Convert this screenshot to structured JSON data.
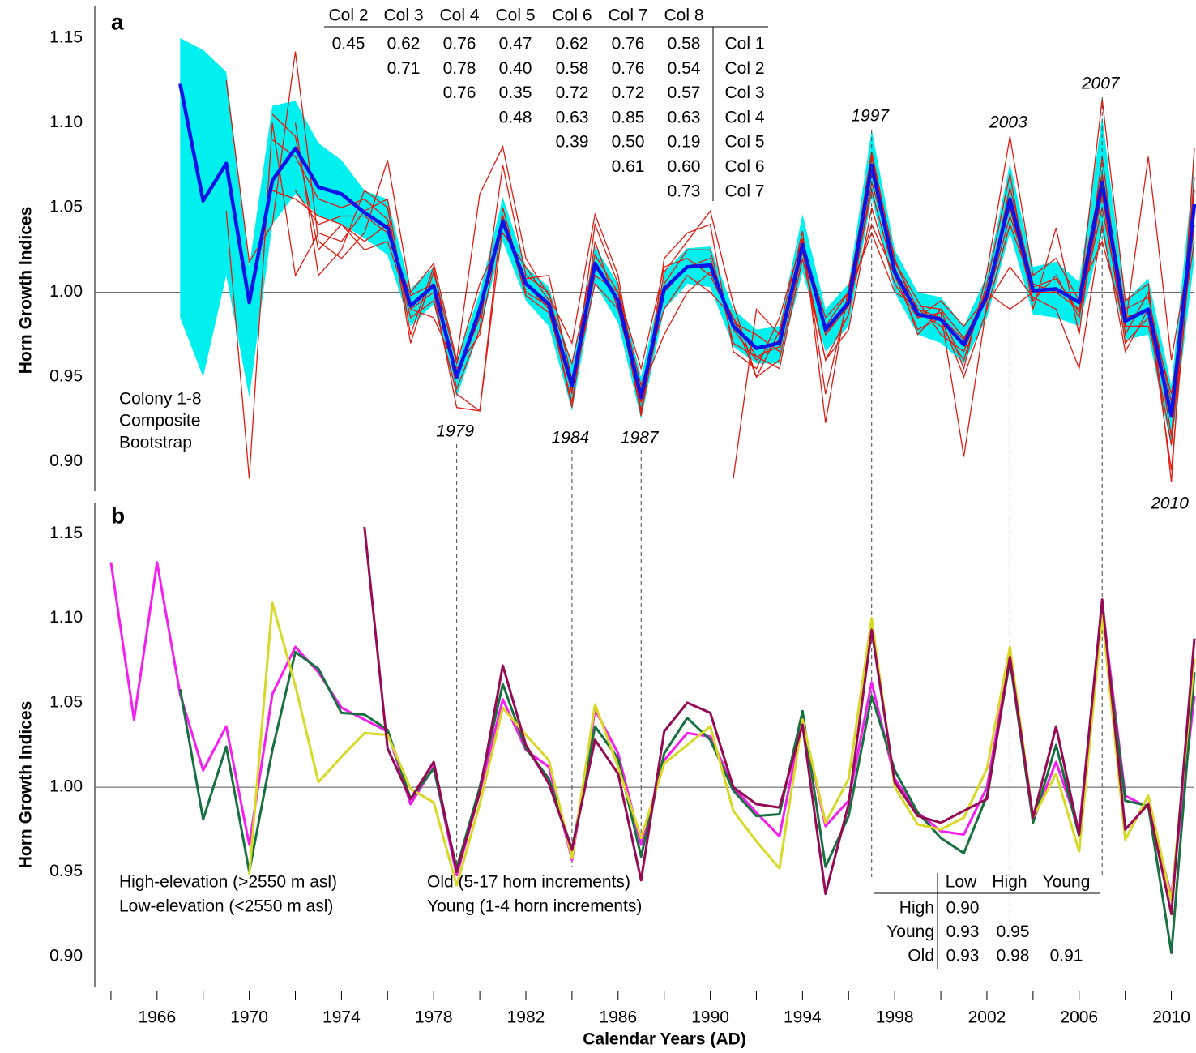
{
  "chart_data": [
    {
      "type": "line",
      "panel": "a",
      "ylabel": "Horn Growth Indices",
      "xlim": [
        1963.3,
        2011
      ],
      "ylim": [
        0.885,
        1.165
      ],
      "yticks": [
        {
          "value": 0.9,
          "label": "0.90"
        },
        0.95,
        {
          "value": 1,
          "label": "1.00"
        },
        1.05,
        {
          "value": 1.1,
          "label": "1.10"
        },
        1.15
      ],
      "hline": 1,
      "grid": false,
      "x": [
        1967,
        1968,
        1969,
        1970,
        1971,
        1972,
        1973,
        1974,
        1975,
        1976,
        1977,
        1978,
        1979,
        1980,
        1981,
        1982,
        1983,
        1984,
        1985,
        1986,
        1987,
        1988,
        1989,
        1990,
        1991,
        1992,
        1993,
        1994,
        1995,
        1996,
        1997,
        1998,
        1999,
        2000,
        2001,
        2002,
        2003,
        2004,
        2005,
        2006,
        2007,
        2008,
        2009,
        2010,
        2011
      ],
      "band": {
        "name": "Bootstrap",
        "color": "#00f0f0",
        "upper": [
          1.15,
          1.143,
          1.13,
          1.015,
          1.11,
          1.113,
          1.088,
          1.078,
          1.06,
          1.055,
          1.002,
          1.015,
          0.96,
          1.0,
          1.056,
          1.015,
          1.003,
          0.957,
          1.027,
          1.005,
          0.95,
          1.012,
          1.026,
          1.027,
          0.99,
          0.978,
          0.98,
          1.046,
          0.99,
          1.005,
          1.096,
          1.025,
          1.0,
          0.997,
          0.98,
          1.01,
          1.076,
          1.015,
          1.018,
          1.006,
          1.104,
          0.995,
          1.008,
          0.945,
          1.078
        ],
        "lower": [
          0.985,
          0.95,
          1.01,
          0.938,
          1.04,
          1.058,
          1.045,
          1.04,
          1.032,
          1.022,
          0.98,
          0.993,
          0.938,
          0.978,
          1.03,
          0.995,
          0.98,
          0.93,
          1.005,
          0.982,
          0.925,
          0.99,
          1.005,
          1.003,
          0.968,
          0.958,
          0.958,
          1.012,
          0.965,
          0.98,
          1.056,
          1.0,
          0.975,
          0.97,
          0.958,
          0.985,
          1.035,
          0.987,
          0.985,
          0.98,
          1.035,
          0.972,
          0.975,
          0.908,
          1.02
        ]
      },
      "colonies": {
        "name": "Colony 1-8",
        "color": "#e41a10",
        "series": [
          [
            null,
            null,
            1.125,
            1.018,
            1.04,
            1.142,
            1.03,
            1.02,
            1.035,
            1.078,
            1.0,
            1.017,
            0.96,
            1.058,
            1.086,
            1.02,
            0.998,
            0.97,
            1.046,
            1.01,
            0.93,
            1.012,
            1.03,
            1.048,
            0.993,
            0.95,
            0.977,
            1.036,
            0.923,
            1.003,
            1.07,
            1.015,
            0.975,
            0.99,
            0.955,
            1.012,
            1.092,
            1.01,
            1.02,
            0.995,
            1.114,
            0.995,
            1.005,
            0.888,
            1.085
          ],
          [
            null,
            null,
            1.048,
            0.89,
            1.1,
            1.01,
            1.035,
            1.03,
            1.048,
            1.055,
            0.975,
            1.015,
            0.943,
            0.978,
            1.075,
            1.01,
            1.0,
            0.94,
            1.04,
            1.005,
            0.927,
            1.02,
            1.035,
            1.04,
            0.965,
            0.955,
            0.985,
            1.032,
            0.94,
            0.998,
            1.083,
            1.018,
            0.99,
            0.98,
            0.96,
            1.005,
            1.07,
            0.99,
            1.038,
            0.975,
            1.08,
            0.975,
            1.0,
            0.915,
            1.068
          ],
          [
            null,
            null,
            null,
            null,
            1.105,
            1.092,
            1.025,
            1.04,
            1.03,
            1.04,
            0.985,
            0.995,
            0.94,
            0.93,
            1.05,
            1.0,
            0.992,
            0.932,
            1.03,
            0.99,
            0.935,
            1.005,
            1.025,
            1.025,
            0.97,
            0.962,
            0.968,
            1.026,
            0.975,
            0.992,
            1.06,
            1.01,
            0.978,
            0.985,
            0.95,
            0.99,
            1.04,
            1.003,
            1.008,
            0.988,
            1.05,
            0.98,
            0.98,
            0.93,
            1.04
          ],
          [
            null,
            null,
            null,
            null,
            1.09,
            1.08,
            1.055,
            1.05,
            1.055,
            1.043,
            0.99,
            1.0,
            0.932,
            0.93,
            1.04,
            1.008,
            1.01,
            0.948,
            1.01,
            1.0,
            0.945,
            0.99,
            1.01,
            1.0,
            0.985,
            0.962,
            0.955,
            1.02,
            0.96,
            0.987,
            1.065,
            1.018,
            0.995,
            0.975,
            0.965,
            1.002,
            1.05,
            0.995,
            1.01,
            0.985,
            1.058,
            0.97,
            0.985,
            0.91,
            1.05
          ],
          [
            null,
            null,
            null,
            null,
            1.06,
            1.055,
            1.045,
            1.04,
            1.025,
            1.03,
            0.99,
            0.985,
            0.955,
            0.975,
            1.045,
            0.998,
            0.988,
            0.942,
            1.005,
            0.99,
            0.942,
            0.975,
            1.0,
            1.012,
            0.985,
            0.95,
            0.96,
            1.024,
            0.96,
            0.978,
            1.05,
            1.005,
            0.985,
            0.988,
            0.903,
            0.993,
            1.015,
            0.997,
            0.99,
            0.955,
            1.04,
            0.965,
            0.99,
            0.94,
            1.03
          ],
          [
            null,
            null,
            null,
            null,
            null,
            1.1,
            1.01,
            1.025,
            1.06,
            1.05,
            0.97,
            1.012,
            0.958,
            1.005,
            1.035,
            1.015,
            0.995,
            0.958,
            1.022,
            1.0,
            0.955,
            1.015,
            1.02,
            1.01,
            0.982,
            0.975,
            0.965,
            1.03,
            0.98,
            1.0,
            1.08,
            1.02,
            0.985,
            0.995,
            0.98,
            0.997,
            1.062,
            1.005,
            1.0,
            1.0,
            1.07,
            0.99,
            0.997,
            0.935,
            1.06
          ],
          [
            null,
            null,
            null,
            null,
            null,
            1.06,
            1.04,
            1.045,
            1.045,
            1.035,
            0.998,
            1.005,
            0.95,
            0.985,
            1.045,
            1.005,
            0.99,
            0.935,
            1.015,
            0.995,
            0.928,
            1.0,
            1.015,
            1.02,
            0.978,
            0.96,
            0.972,
            1.03,
            0.975,
            0.995,
            1.04,
            1.01,
            0.99,
            0.985,
            0.972,
            1.0,
            0.99,
            1.0,
            1.0,
            0.99,
            1.06,
            0.985,
            0.99,
            0.895,
            1.05
          ],
          [
            null,
            null,
            null,
            null,
            null,
            null,
            null,
            null,
            null,
            null,
            null,
            null,
            null,
            null,
            null,
            null,
            null,
            null,
            null,
            null,
            null,
            null,
            null,
            null,
            0.89,
            0.99,
            0.975,
            1.028,
            0.985,
            1.0,
            1.035,
            1.0,
            0.992,
            0.99,
            0.973,
            0.995,
            1.045,
            1.005,
            1.0,
            1.0,
            1.03,
            0.98,
            1.08,
            0.96,
            1.04
          ]
        ]
      },
      "series": [
        {
          "name": "Composite",
          "color": "#0a14e6",
          "values": [
            1.123,
            1.054,
            1.076,
            0.994,
            1.066,
            1.085,
            1.062,
            1.058,
            1.047,
            1.038,
            0.992,
            1.004,
            0.95,
            0.99,
            1.042,
            1.005,
            0.993,
            0.945,
            1.017,
            0.995,
            0.938,
            1.002,
            1.015,
            1.016,
            0.98,
            0.967,
            0.97,
            1.028,
            0.978,
            0.994,
            1.075,
            1.012,
            0.987,
            0.984,
            0.969,
            0.998,
            1.055,
            1.001,
            1.002,
            0.994,
            1.065,
            0.983,
            0.99,
            0.927,
            1.052
          ]
        }
      ],
      "annotations": [
        1979,
        1984,
        1987,
        1997,
        2003,
        2007,
        2010
      ],
      "table": {
        "color": "#e41a10",
        "columns": [
          "Col 2",
          "Col 3",
          "Col 4",
          "Col 5",
          "Col 6",
          "Col 7",
          "Col 8"
        ],
        "rows": [
          {
            "label": "Col 1",
            "values": [
              "0.45",
              "0.62",
              "0.76",
              "0.47",
              "0.62",
              "0.76",
              "0.58"
            ]
          },
          {
            "label": "Col 2",
            "values": [
              "0.71",
              "0.78",
              "0.40",
              "0.58",
              "0.76",
              "0.54"
            ]
          },
          {
            "label": "Col 3",
            "values": [
              "0.76",
              "0.35",
              "0.72",
              "0.72",
              "0.57"
            ]
          },
          {
            "label": "Col 4",
            "values": [
              "0.48",
              "0.63",
              "0.85",
              "0.63"
            ]
          },
          {
            "label": "Col 5",
            "values": [
              "0.39",
              "0.50",
              "0.19"
            ]
          },
          {
            "label": "Col 6",
            "values": [
              "0.61",
              "0.60"
            ]
          },
          {
            "label": "Col 7",
            "values": [
              "0.73"
            ]
          }
        ]
      }
    },
    {
      "type": "line",
      "panel": "b",
      "ylabel": "Horn Growth Indices",
      "xlabel": "Calendar Years (AD)",
      "xlim": [
        1963.3,
        2011
      ],
      "ylim": [
        0.885,
        1.165
      ],
      "yticks": [
        {
          "value": 0.9,
          "label": "0.90"
        },
        0.95,
        {
          "value": 1,
          "label": "1.00"
        },
        1.05,
        {
          "value": 1.1,
          "label": "1.10"
        },
        1.15
      ],
      "xticks": [
        1966,
        1970,
        1974,
        1978,
        1982,
        1986,
        1990,
        1994,
        1998,
        2002,
        2006,
        2010
      ],
      "xminorticks": [
        1964,
        1968,
        1972,
        1976,
        1980,
        1984,
        1988,
        1992,
        1996,
        2000,
        2004,
        2008
      ],
      "hline": 1,
      "grid": false,
      "x": [
        1964,
        1965,
        1966,
        1967,
        1968,
        1969,
        1970,
        1971,
        1972,
        1973,
        1974,
        1975,
        1976,
        1977,
        1978,
        1979,
        1980,
        1981,
        1982,
        1983,
        1984,
        1985,
        1986,
        1987,
        1988,
        1989,
        1990,
        1991,
        1992,
        1993,
        1994,
        1995,
        1996,
        1997,
        1998,
        1999,
        2000,
        2001,
        2002,
        2003,
        2004,
        2005,
        2006,
        2007,
        2008,
        2009,
        2010,
        2011
      ],
      "series": [
        {
          "name": "Old (5-17 horn increments)",
          "color": "#f51ef0",
          "values": [
            1.133,
            1.04,
            1.133,
            1.055,
            1.01,
            1.036,
            0.966,
            1.055,
            1.083,
            1.068,
            1.047,
            1.04,
            1.033,
            0.99,
            1.012,
            0.948,
            0.997,
            1.052,
            1.022,
            1.012,
            0.957,
            1.046,
            1.02,
            0.966,
            1.016,
            1.032,
            1.03,
            1.0,
            0.985,
            0.971,
            1.04,
            0.977,
            0.992,
            1.062,
            1.005,
            0.985,
            0.974,
            0.972,
            1.0,
            1.078,
            0.98,
            1.015,
            0.975,
            1.108,
            0.995,
            0.988,
            0.936,
            1.054
          ]
        },
        {
          "name": "High-elevation (>2550 m asl)",
          "color": "#177040",
          "values": [
            null,
            null,
            null,
            1.058,
            0.981,
            1.024,
            0.95,
            1.022,
            1.08,
            1.07,
            1.044,
            1.043,
            1.034,
            0.993,
            1.011,
            0.952,
            1.0,
            1.061,
            1.023,
            1.005,
            0.963,
            1.036,
            1.017,
            0.959,
            1.02,
            1.041,
            1.028,
            0.998,
            0.983,
            0.984,
            1.045,
            0.953,
            0.983,
            1.054,
            1.01,
            0.985,
            0.97,
            0.961,
            0.995,
            1.075,
            0.979,
            1.025,
            0.971,
            1.104,
            0.992,
            0.989,
            0.902,
            1.068
          ]
        },
        {
          "name": "Low-elevation (<2550 m asl)",
          "color": "#d8d826",
          "values": [
            null,
            null,
            null,
            null,
            null,
            null,
            0.948,
            1.109,
            1.06,
            1.003,
            1.018,
            1.032,
            1.031,
            0.999,
            0.991,
            0.942,
            0.99,
            1.047,
            1.031,
            1.016,
            0.958,
            1.049,
            1.012,
            0.97,
            1.014,
            1.025,
            1.036,
            0.986,
            0.968,
            0.952,
            1.04,
            0.979,
            1.005,
            1.1,
            1.0,
            0.978,
            0.975,
            0.982,
            1.011,
            1.083,
            0.982,
            1.008,
            0.962,
            1.102,
            0.969,
            0.995,
            0.933,
            1.076
          ]
        },
        {
          "name": "Young (1-4 horn increments)",
          "color": "#960a55",
          "values": [
            null,
            null,
            null,
            null,
            null,
            null,
            null,
            null,
            null,
            null,
            null,
            1.154,
            1.023,
            0.993,
            1.015,
            0.95,
            0.997,
            1.072,
            1.025,
            1.002,
            0.963,
            1.028,
            1.008,
            0.945,
            1.033,
            1.05,
            1.044,
            1.0,
            0.99,
            0.988,
            1.037,
            0.937,
            0.99,
            1.093,
            1.003,
            0.983,
            0.979,
            0.986,
            0.993,
            1.077,
            0.982,
            1.036,
            0.972,
            1.111,
            0.975,
            0.99,
            0.925,
            1.088
          ]
        }
      ],
      "table": {
        "columns": [
          "Low",
          "High",
          "Young"
        ],
        "column_colors": [
          "#d8d826",
          "#177040",
          "#960a55"
        ],
        "rows": [
          {
            "label": "High",
            "color": "#177040",
            "values": [
              "0.90"
            ]
          },
          {
            "label": "Young",
            "color": "#960a55",
            "values": [
              "0.93",
              "0.95"
            ]
          },
          {
            "label": "Old",
            "color": "#f51ef0",
            "values": [
              "0.93",
              "0.98",
              "0.91"
            ]
          }
        ]
      }
    }
  ]
}
